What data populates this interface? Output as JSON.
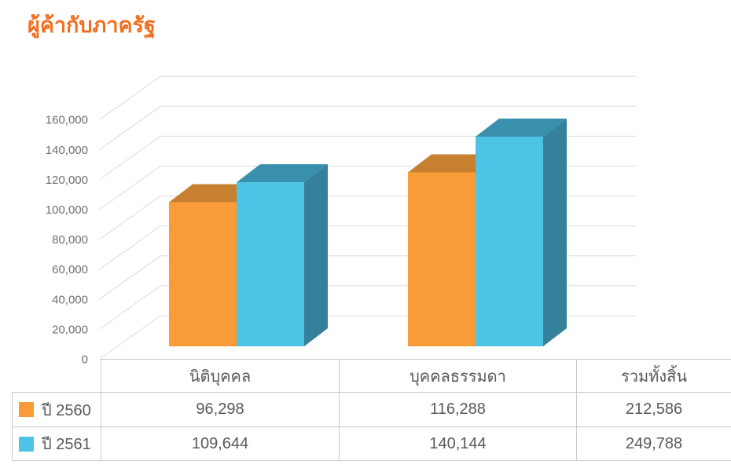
{
  "title": "ผู้ค้ากับภาครัฐ",
  "colors": {
    "title": "#F26E1E",
    "gridline": "#DBDBDB",
    "axis_label_text": "#6E6E6E",
    "table_border": "#C9C9C9",
    "table_text": "#595959"
  },
  "chart_data": {
    "type": "bar",
    "style": "3d-clustered-column",
    "title": "ผู้ค้ากับภาครัฐ",
    "categories": [
      "นิติบุคคล",
      "บุคคลธรรมดา"
    ],
    "series": [
      {
        "name": "ปี 2560",
        "values": [
          96298,
          116288
        ],
        "color": "#F99B37",
        "color_top": "#C6802F",
        "color_side": "#B5732A"
      },
      {
        "name": "ปี 2561",
        "values": [
          109644,
          140144
        ],
        "color": "#4DC3E6",
        "color_top": "#3990AC",
        "color_side": "#35809A"
      }
    ],
    "totals": {
      "label": "รวมทั้งสิ้น",
      "values": [
        212586,
        249788
      ]
    },
    "ylim": [
      0,
      160000
    ],
    "ytick_step": 20000,
    "ytick_labels": [
      "0",
      "20,000",
      "40,000",
      "60,000",
      "80,000",
      "100,000",
      "120,000",
      "140,000",
      "160,000"
    ],
    "grid": true,
    "legend_position": "table-left-column"
  },
  "table": {
    "headers": [
      "นิติบุคคล",
      "บุคคลธรรมดา",
      "รวมทั้งสิ้น"
    ],
    "rows": [
      {
        "legend": "ปี 2560",
        "swatch_color": "#F99B37",
        "values": [
          "96,298",
          "116,288",
          "212,586"
        ]
      },
      {
        "legend": "ปี 2561",
        "swatch_color": "#4DC3E6",
        "values": [
          "109,644",
          "140,144",
          "249,788"
        ]
      }
    ]
  }
}
